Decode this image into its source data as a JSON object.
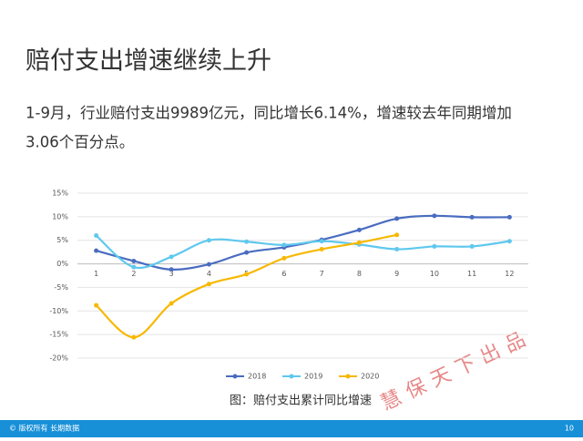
{
  "header": {
    "title": "赔付支出增速继续上升"
  },
  "body": {
    "lines": [
      "1-9月，行业赔付支出9989亿元，同比增长6.14%，增速较去年同期增加",
      "3.06个百分点。"
    ]
  },
  "chart_data": {
    "type": "line",
    "caption": "图：赔付支出累计同比增速",
    "categories": [
      "1",
      "2",
      "3",
      "4",
      "5",
      "6",
      "7",
      "8",
      "9",
      "10",
      "11",
      "12"
    ],
    "series": [
      {
        "name": "2018",
        "color": "#4a6cc0",
        "values": [
          2.8,
          0.6,
          -1.2,
          -0.1,
          2.4,
          3.5,
          5.1,
          7.2,
          9.6,
          10.2,
          9.9,
          9.9
        ]
      },
      {
        "name": "2019",
        "color": "#5fc8ee",
        "values": [
          6.0,
          -0.7,
          1.5,
          5.0,
          4.7,
          4.0,
          4.8,
          4.1,
          3.1,
          3.7,
          3.7,
          4.8
        ]
      },
      {
        "name": "2020",
        "color": "#f7b800",
        "values": [
          -8.8,
          -15.6,
          -8.4,
          -4.3,
          -2.2,
          1.2,
          3.1,
          4.5,
          6.14,
          null,
          null,
          null
        ]
      }
    ],
    "ylim": [
      -20,
      15
    ],
    "yticks": [
      {
        "value": -20,
        "label": "-20%"
      },
      {
        "value": -15,
        "label": "-15%"
      },
      {
        "value": -10,
        "label": "-10%"
      },
      {
        "value": -5,
        "label": "-5%"
      },
      {
        "value": 0,
        "label": "0%"
      },
      {
        "value": 5,
        "label": "5%"
      },
      {
        "value": 10,
        "label": "10%"
      },
      {
        "value": 15,
        "label": "15%"
      }
    ],
    "grid": true,
    "legend": "bottom"
  },
  "watermark": "慧保天下出品",
  "footer": {
    "copyright": "© 版权所有 长期数据",
    "page": "10"
  }
}
